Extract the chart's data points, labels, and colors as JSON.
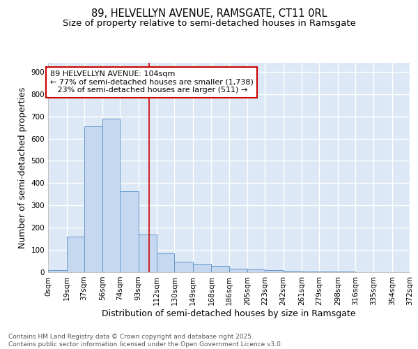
{
  "title_line1": "89, HELVELLYN AVENUE, RAMSGATE, CT11 0RL",
  "title_line2": "Size of property relative to semi-detached houses in Ramsgate",
  "xlabel": "Distribution of semi-detached houses by size in Ramsgate",
  "ylabel": "Number of semi-detached properties",
  "bar_color": "#c5d8f0",
  "bar_edge_color": "#6699cc",
  "background_color": "#dce8f5",
  "grid_color": "white",
  "bins": [
    0,
    19,
    37,
    56,
    74,
    93,
    112,
    130,
    149,
    168,
    186,
    205,
    223,
    242,
    261,
    279,
    298,
    316,
    335,
    354,
    372
  ],
  "bin_labels": [
    "0sqm",
    "19sqm",
    "37sqm",
    "56sqm",
    "74sqm",
    "93sqm",
    "112sqm",
    "130sqm",
    "149sqm",
    "168sqm",
    "186sqm",
    "205sqm",
    "223sqm",
    "242sqm",
    "261sqm",
    "279sqm",
    "298sqm",
    "316sqm",
    "335sqm",
    "354sqm",
    "372sqm"
  ],
  "values": [
    8,
    160,
    655,
    690,
    365,
    170,
    85,
    48,
    38,
    28,
    15,
    12,
    10,
    7,
    4,
    3,
    2,
    0,
    0,
    0
  ],
  "property_line_x": 104,
  "vline_color": "#cc0000",
  "annotation_line1": "89 HELVELLYN AVENUE: 104sqm",
  "annotation_line2": "← 77% of semi-detached houses are smaller (1,738)",
  "annotation_line3": "   23% of semi-detached houses are larger (511) →",
  "annotation_box_color": "#cc0000",
  "ylim": [
    0,
    940
  ],
  "yticks": [
    0,
    100,
    200,
    300,
    400,
    500,
    600,
    700,
    800,
    900
  ],
  "footer_text": "Contains HM Land Registry data © Crown copyright and database right 2025.\nContains public sector information licensed under the Open Government Licence v3.0.",
  "title_fontsize": 10.5,
  "subtitle_fontsize": 9.5,
  "axis_label_fontsize": 9,
  "tick_fontsize": 7.5,
  "annotation_fontsize": 8,
  "footer_fontsize": 6.5
}
